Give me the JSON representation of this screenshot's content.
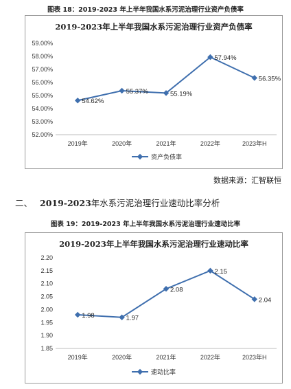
{
  "figure18": {
    "caption": "图表 18：2019-2023 年上半年我国水系污泥治理行业资产负债率",
    "chart_data": {
      "type": "line",
      "title": "2019-2023年上半年我国水系污泥治理行业资产负债率",
      "categories": [
        "2019年",
        "2020年",
        "2021年",
        "2022年",
        "2023年H"
      ],
      "series": [
        {
          "name": "资产负债率",
          "values": [
            54.62,
            55.37,
            55.19,
            57.94,
            56.35
          ],
          "labels": [
            "54.62%",
            "55.37%",
            "55.19%",
            "57.94%",
            "56.35%"
          ]
        }
      ],
      "ylim": [
        52.0,
        59.0
      ],
      "yticks": [
        "52.00%",
        "53.00%",
        "54.00%",
        "55.00%",
        "56.00%",
        "57.00%",
        "58.00%",
        "59.00%"
      ],
      "grid": false,
      "legend_position": "bottom",
      "line_color": "#3F6FAE"
    }
  },
  "source_note": "数据来源：汇智联恒",
  "section": {
    "number": "二、",
    "year_range": "2019-2023",
    "title": "年水系污泥治理行业速动比率分析"
  },
  "figure19": {
    "caption": "图表 19：2019-2023 年上半年我国水系污泥治理行业速动比率",
    "chart_data": {
      "type": "line",
      "title": "2019-2023年上半年我国水系污泥治理行业速动比率",
      "categories": [
        "2019年",
        "2020年",
        "2021年",
        "2022年",
        "2023年H"
      ],
      "series": [
        {
          "name": "速动比率",
          "values": [
            1.98,
            1.97,
            2.08,
            2.15,
            2.04
          ],
          "labels": [
            "1.98",
            "1.97",
            "2.08",
            "2.15",
            "2.04"
          ]
        }
      ],
      "ylim": [
        1.85,
        2.2
      ],
      "yticks": [
        "1.85",
        "1.90",
        "1.95",
        "2.00",
        "2.05",
        "2.10",
        "2.15",
        "2.20"
      ],
      "grid": false,
      "legend_position": "bottom",
      "line_color": "#3F6FAE"
    }
  }
}
